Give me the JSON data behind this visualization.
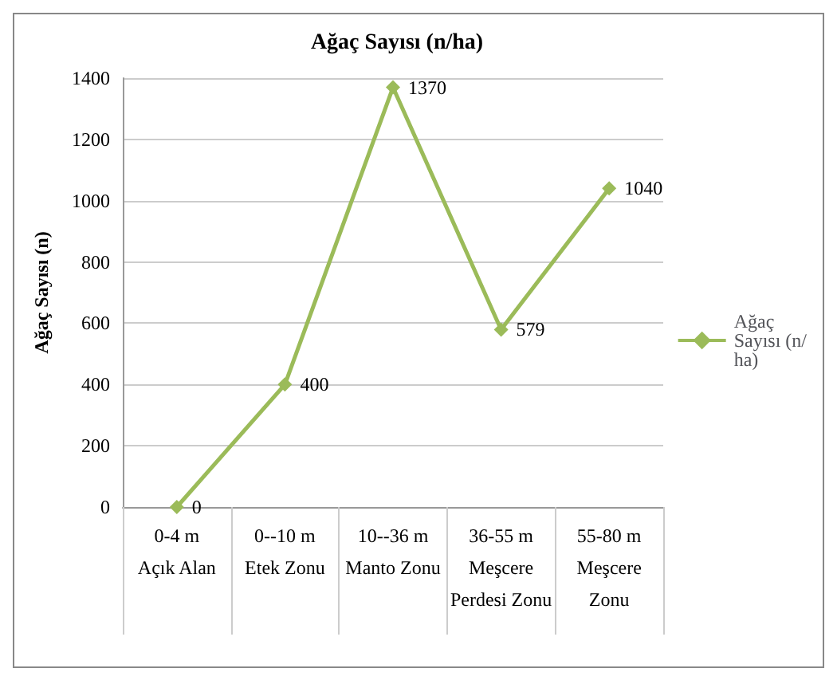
{
  "chart_data": {
    "type": "line",
    "title": "Ağaç Sayısı (n/ha)",
    "ylabel": "Ağaç Sayısı (n)",
    "categories": [
      "0-4 m\nAçık Alan",
      "0--10 m\nEtek Zonu",
      "10--36 m\nManto Zonu",
      "36-55 m\nMeşcere\nPerdesi Zonu",
      "55-80 m\nMeşcere\nZonu"
    ],
    "series": [
      {
        "name": "Ağaç Sayısı (n/ha)",
        "color": "#9bbb59",
        "values": [
          0,
          400,
          1370,
          579,
          1040
        ]
      }
    ],
    "ylim": [
      0,
      1400
    ],
    "yticks": [
      0,
      200,
      400,
      600,
      800,
      1000,
      1200,
      1400
    ],
    "grid": "y",
    "legend": "right",
    "marker": "diamond",
    "line_style": "solid",
    "data_labels": true
  }
}
